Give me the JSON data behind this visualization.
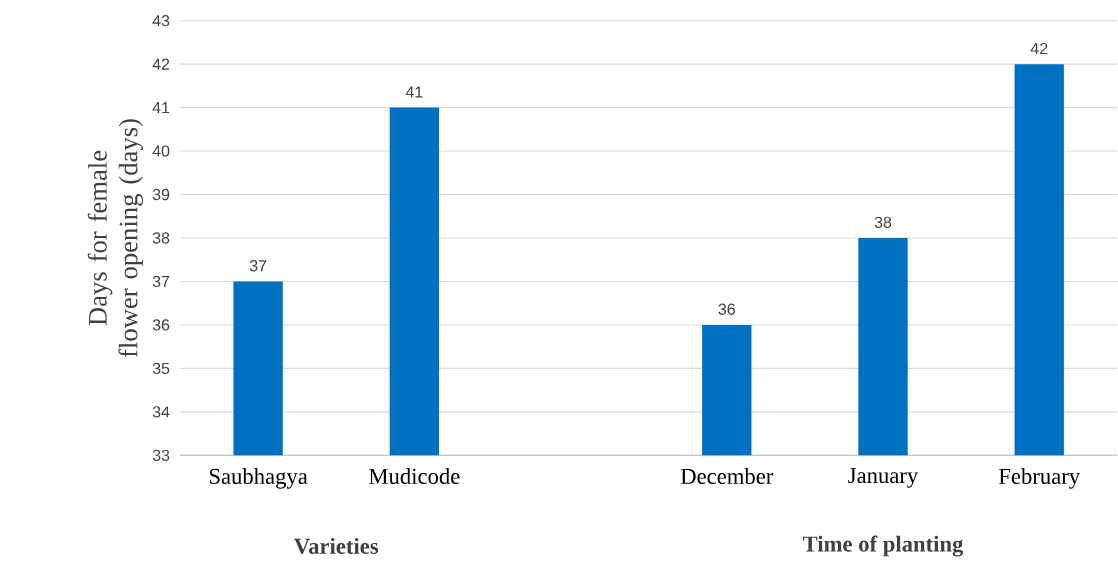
{
  "chart_data": {
    "type": "bar",
    "categories": [
      "Saubhagya",
      "Mudicode",
      null,
      "December",
      "January",
      "February"
    ],
    "values": [
      37,
      41,
      null,
      36,
      38,
      42
    ],
    "color": "#0070c0",
    "ylabel": "Days for female flower opening (days)",
    "ylim": [
      33,
      43
    ],
    "yticks": [
      33,
      34,
      35,
      36,
      37,
      38,
      39,
      40,
      41,
      42,
      43
    ],
    "grid": "y",
    "data_labels": true,
    "annotations": [
      "Varieties",
      "Time of planting"
    ]
  }
}
